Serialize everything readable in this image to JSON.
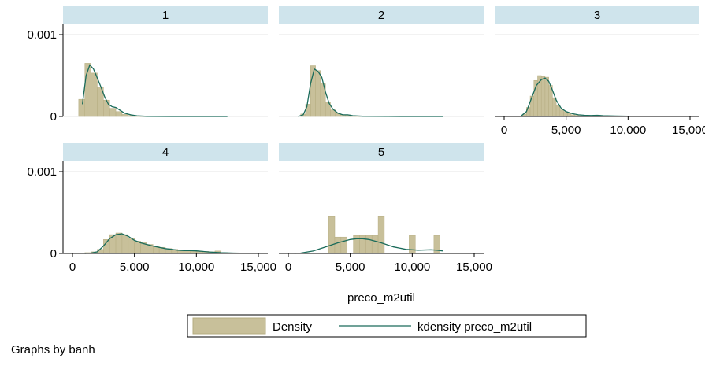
{
  "note": "Graphs by banh",
  "chart_data": {
    "type": "histogram",
    "xlabel": "preco_m2util",
    "xlim": [
      0,
      15000
    ],
    "ylim": [
      0,
      0.001
    ],
    "x_ticks": [
      0,
      5000,
      10000,
      15000
    ],
    "x_tick_labels": [
      "0",
      "5,000",
      "10,000",
      "15,000"
    ],
    "y_ticks": [
      0,
      0.001
    ],
    "y_tick_labels": [
      "0",
      "0.001"
    ],
    "legend": {
      "position": "bottom",
      "entries": [
        {
          "name": "Density",
          "kind": "bar"
        },
        {
          "name": "kdensity preco_m2util",
          "kind": "line"
        }
      ]
    },
    "colors": {
      "bar_fill": "#c8c09a",
      "bar_edge": "#b5ac80",
      "line": "#1a6b5a",
      "strip": "#cfe4ec"
    },
    "panels": [
      {
        "label": "1",
        "bin_width": 500,
        "bins": [
          [
            750,
            0.00021
          ],
          [
            1250,
            0.00065
          ],
          [
            1750,
            0.00053
          ],
          [
            2250,
            0.00036
          ],
          [
            2750,
            0.0002
          ],
          [
            3250,
            0.0001
          ],
          [
            3750,
            6e-05
          ],
          [
            4250,
            2.5e-05
          ],
          [
            4750,
            1.2e-05
          ],
          [
            5250,
            6e-06
          ],
          [
            5750,
            3e-06
          ]
        ],
        "kde": [
          [
            800,
            0.00015
          ],
          [
            1100,
            0.0005
          ],
          [
            1400,
            0.00063
          ],
          [
            1700,
            0.00058
          ],
          [
            2000,
            0.00047
          ],
          [
            2300,
            0.00036
          ],
          [
            2600,
            0.00024
          ],
          [
            2900,
            0.00015
          ],
          [
            3200,
            0.00012
          ],
          [
            3500,
            0.00011
          ],
          [
            3800,
            8e-05
          ],
          [
            4200,
            4e-05
          ],
          [
            4700,
            2e-05
          ],
          [
            5200,
            8e-06
          ],
          [
            6000,
            2e-06
          ],
          [
            8000,
            3e-07
          ],
          [
            12500,
            0
          ]
        ]
      },
      {
        "label": "2",
        "bin_width": 400,
        "bins": [
          [
            1200,
            3e-05
          ],
          [
            1600,
            0.00015
          ],
          [
            2000,
            0.00062
          ],
          [
            2400,
            0.00056
          ],
          [
            2800,
            0.0004
          ],
          [
            3200,
            0.00018
          ],
          [
            3600,
            8e-05
          ],
          [
            4000,
            4e-05
          ],
          [
            4400,
            2e-05
          ],
          [
            4800,
            2e-05
          ],
          [
            5200,
            1.2e-05
          ],
          [
            5600,
            6e-06
          ]
        ],
        "kde": [
          [
            800,
            0
          ],
          [
            1200,
            2e-05
          ],
          [
            1500,
            0.00012
          ],
          [
            1800,
            0.0004
          ],
          [
            2100,
            0.00058
          ],
          [
            2400,
            0.00055
          ],
          [
            2700,
            0.00048
          ],
          [
            3000,
            0.0003
          ],
          [
            3300,
            0.00016
          ],
          [
            3600,
            9e-05
          ],
          [
            4000,
            4e-05
          ],
          [
            4400,
            2e-05
          ],
          [
            4800,
            2e-05
          ],
          [
            5200,
            1e-05
          ],
          [
            6000,
            3e-06
          ],
          [
            8000,
            5e-07
          ],
          [
            12500,
            0
          ]
        ]
      },
      {
        "label": "3",
        "bin_width": 300,
        "bins": [
          [
            1650,
            3e-05
          ],
          [
            1950,
            0.00011
          ],
          [
            2250,
            0.00025
          ],
          [
            2550,
            0.00044
          ],
          [
            2850,
            0.0005
          ],
          [
            3150,
            0.00049
          ],
          [
            3450,
            0.00048
          ],
          [
            3750,
            0.00038
          ],
          [
            4050,
            0.00023
          ],
          [
            4350,
            0.00014
          ],
          [
            4650,
            8e-05
          ],
          [
            4950,
            6e-05
          ],
          [
            5250,
            3.5e-05
          ],
          [
            5550,
            2e-05
          ],
          [
            5850,
            1.5e-05
          ],
          [
            6150,
            1e-05
          ],
          [
            6750,
            8e-06
          ],
          [
            7350,
            6e-06
          ],
          [
            7950,
            6e-06
          ],
          [
            8550,
            4e-06
          ],
          [
            9450,
            4e-06
          ]
        ],
        "kde": [
          [
            1400,
            1e-05
          ],
          [
            1800,
            6e-05
          ],
          [
            2200,
            0.00022
          ],
          [
            2600,
            0.00038
          ],
          [
            3000,
            0.00045
          ],
          [
            3300,
            0.00047
          ],
          [
            3600,
            0.00043
          ],
          [
            3900,
            0.00032
          ],
          [
            4200,
            0.0002
          ],
          [
            4600,
            0.0001
          ],
          [
            5000,
            6e-05
          ],
          [
            5500,
            3.5e-05
          ],
          [
            6000,
            2e-05
          ],
          [
            6500,
            1.4e-05
          ],
          [
            7000,
            1.2e-05
          ],
          [
            7500,
            1.4e-05
          ],
          [
            8000,
            1e-05
          ],
          [
            9000,
            6e-06
          ],
          [
            10000,
            4e-06
          ],
          [
            12000,
            3e-06
          ],
          [
            15000,
            1e-06
          ]
        ]
      },
      {
        "label": "4",
        "bin_width": 500,
        "bins": [
          [
            1250,
            1e-05
          ],
          [
            1750,
            2e-05
          ],
          [
            2250,
            5e-05
          ],
          [
            2750,
            0.00017
          ],
          [
            3250,
            0.00023
          ],
          [
            3750,
            0.00025
          ],
          [
            4250,
            0.00023
          ],
          [
            4750,
            0.00019
          ],
          [
            5250,
            0.00015
          ],
          [
            5750,
            0.00014
          ],
          [
            6250,
            0.00011
          ],
          [
            6750,
            9e-05
          ],
          [
            7250,
            7.5e-05
          ],
          [
            7750,
            6e-05
          ],
          [
            8250,
            5e-05
          ],
          [
            8750,
            4e-05
          ],
          [
            9250,
            4.5e-05
          ],
          [
            9750,
            4e-05
          ],
          [
            10250,
            3e-05
          ],
          [
            10750,
            2.5e-05
          ],
          [
            11250,
            2e-05
          ],
          [
            11750,
            3e-05
          ],
          [
            12250,
            1e-05
          ]
        ],
        "kde": [
          [
            1000,
            0
          ],
          [
            1500,
            5e-06
          ],
          [
            2000,
            2e-05
          ],
          [
            2500,
            9e-05
          ],
          [
            3000,
            0.00018
          ],
          [
            3500,
            0.00023
          ],
          [
            4000,
            0.00024
          ],
          [
            4500,
            0.00021
          ],
          [
            5000,
            0.00016
          ],
          [
            5500,
            0.00013
          ],
          [
            6000,
            0.00011
          ],
          [
            6500,
            9e-05
          ],
          [
            7000,
            7.5e-05
          ],
          [
            7500,
            6e-05
          ],
          [
            8000,
            5e-05
          ],
          [
            8500,
            4e-05
          ],
          [
            9000,
            3.5e-05
          ],
          [
            9500,
            3.5e-05
          ],
          [
            10000,
            3.2e-05
          ],
          [
            10500,
            2.5e-05
          ],
          [
            11000,
            1.8e-05
          ],
          [
            12000,
            1e-05
          ],
          [
            13000,
            5e-06
          ],
          [
            14000,
            2e-06
          ]
        ]
      },
      {
        "label": "5",
        "bin_width": 500,
        "bins": [
          [
            3500,
            0.00045
          ],
          [
            4000,
            0.0002
          ],
          [
            4500,
            0.0002
          ],
          [
            5500,
            0.00022
          ],
          [
            6000,
            0.00022
          ],
          [
            6500,
            0.00022
          ],
          [
            7000,
            0.00022
          ],
          [
            7500,
            0.00045
          ],
          [
            10000,
            0.00022
          ],
          [
            12000,
            0.00022
          ]
        ],
        "kde": [
          [
            500,
            0
          ],
          [
            1000,
            5e-06
          ],
          [
            2000,
            3e-05
          ],
          [
            3000,
            8e-05
          ],
          [
            4000,
            0.00013
          ],
          [
            5000,
            0.00017
          ],
          [
            5500,
            0.00018
          ],
          [
            6000,
            0.00018
          ],
          [
            6500,
            0.00017
          ],
          [
            7500,
            0.00013
          ],
          [
            8500,
            8e-05
          ],
          [
            9500,
            5e-05
          ],
          [
            10500,
            4e-05
          ],
          [
            11500,
            4.5e-05
          ],
          [
            12000,
            4e-05
          ],
          [
            12500,
            3e-05
          ]
        ]
      }
    ]
  }
}
